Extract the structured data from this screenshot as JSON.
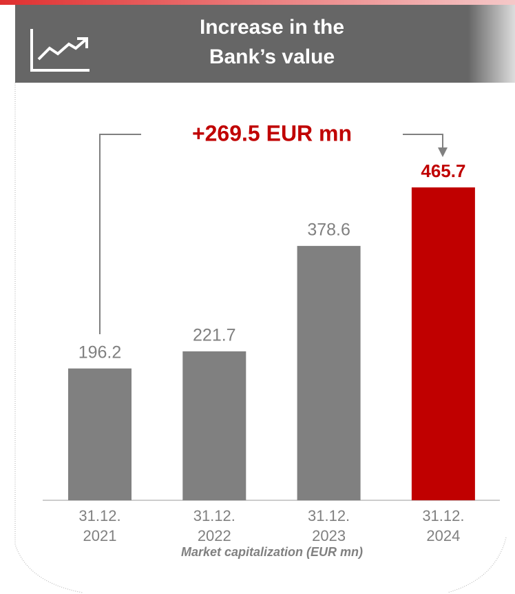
{
  "chart_data": {
    "type": "bar",
    "title": [
      "Increase in the",
      "Bank’s value"
    ],
    "categories": [
      [
        "31.12.",
        "2021"
      ],
      [
        "31.12.",
        "2022"
      ],
      [
        "31.12.",
        "2023"
      ],
      [
        "31.12.",
        "2024"
      ]
    ],
    "values": [
      196.2,
      221.7,
      378.6,
      465.7
    ],
    "colors": [
      "#808080",
      "#808080",
      "#808080",
      "#c00000"
    ],
    "highlight": 3,
    "annotation": "+269.5 EUR mn",
    "x_label": "Market capitalization (EUR mn)"
  }
}
